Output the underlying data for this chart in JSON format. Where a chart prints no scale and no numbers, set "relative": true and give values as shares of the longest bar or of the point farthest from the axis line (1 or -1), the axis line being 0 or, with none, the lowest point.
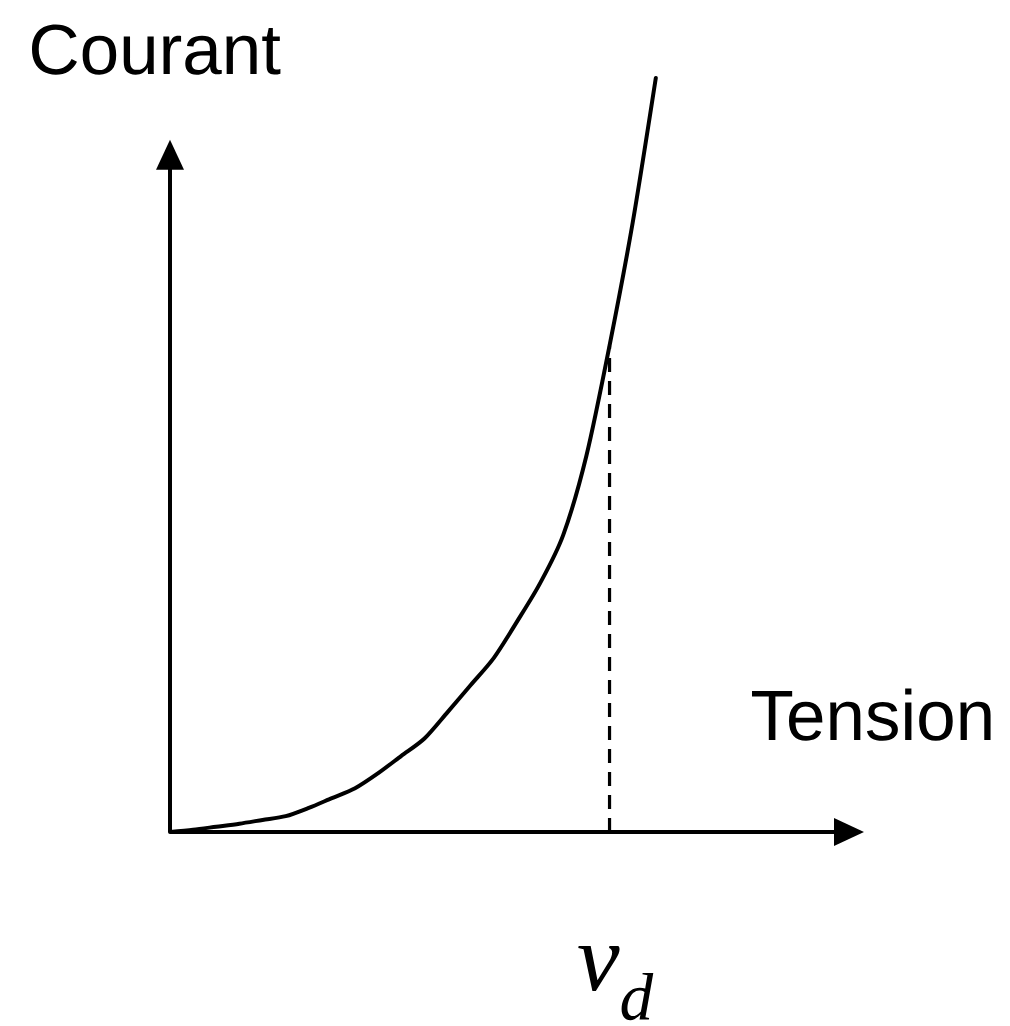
{
  "chart_data": {
    "type": "line",
    "relative": true,
    "xlabel": "Tension",
    "ylabel": "Courant",
    "categories": [
      null,
      null,
      null,
      null,
      null,
      null,
      null,
      null,
      null,
      null,
      null,
      null,
      null,
      null,
      null,
      null,
      null,
      null,
      null,
      null,
      null,
      null,
      null,
      null,
      null,
      null,
      null,
      null,
      null,
      null,
      null
    ],
    "values": [
      0,
      0.003,
      0.007,
      0.011,
      0.016,
      0.021,
      0.032,
      0.045,
      0.058,
      0.078,
      0.101,
      0.124,
      0.159,
      0.195,
      0.231,
      0.279,
      0.33,
      0.394,
      0.499,
      0.645,
      0.808,
      1,
      null,
      null,
      null,
      null,
      null,
      null,
      null,
      null,
      null
    ],
    "color": "#000000",
    "annotations": [
      {
        "text": "v$_{d}$",
        "y": 0.645
      }
    ]
  }
}
